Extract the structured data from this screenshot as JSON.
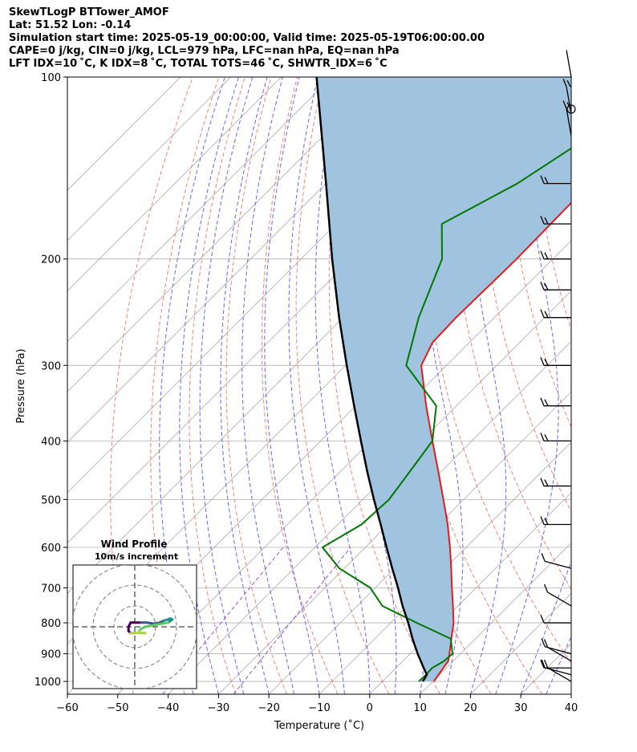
{
  "header": {
    "line1": "SkewTLogP BTTower_AMOF",
    "line2": "Lat: 51.52   Lon: -0.14",
    "line3": "Simulation start time: 2025-05-19_00:00:00, Valid time: 2025-05-19T06:00:00.00",
    "line4": "CAPE=0 j/kg, CIN=0 j/kg, LCL=979 hPa, LFC=nan hPa, EQ=nan hPa",
    "line5": "LFT IDX=10 ˚C, K IDX=8 ˚C, TOTAL TOTS=46 ˚C, SHWTR_IDX=6 ˚C"
  },
  "chart_data": {
    "type": "line",
    "subtype": "skew-T log-p diagram",
    "xlabel": "Temperature (˚C)",
    "ylabel": "Pressure (hPa)",
    "xlim": [
      -60,
      40
    ],
    "ylim": [
      1050,
      100
    ],
    "y_scale": "log",
    "skew": "isotherms slanted 45 degrees",
    "x_ticks": [
      "−60",
      "−50",
      "−40",
      "−30",
      "−20",
      "−10",
      "0",
      "10",
      "20",
      "30",
      "40"
    ],
    "x_tick_values": [
      -60,
      -50,
      -40,
      -30,
      -20,
      -10,
      0,
      10,
      20,
      30,
      40
    ],
    "y_ticks": [
      "100",
      "200",
      "300",
      "400",
      "500",
      "600",
      "700",
      "800",
      "900",
      "1000"
    ],
    "y_tick_values": [
      100,
      200,
      300,
      400,
      500,
      600,
      700,
      800,
      900,
      1000
    ],
    "grid": true,
    "colors": {
      "temperature": "#e41a1c",
      "dewpoint": "#007700",
      "parcel": "#000000",
      "cape_fill": "#a0c4e0",
      "dry_adiabat": "#f08080",
      "moist_adiabat": "#6666ee",
      "mixing_ratio": "#9955cc",
      "isotherm": "#aaaaaa"
    },
    "series": [
      {
        "key": "temperature",
        "pressure": [
          1000,
          975,
          950,
          925,
          900,
          850,
          800,
          750,
          700,
          650,
          600,
          550,
          500,
          450,
          400,
          350,
          300,
          275,
          250,
          200,
          150,
          125,
          110,
          100
        ],
        "values": [
          10.2,
          9.8,
          9.4,
          9.0,
          7.8,
          5.2,
          2.5,
          -1.0,
          -4.8,
          -8.8,
          -13.2,
          -18.2,
          -24.0,
          -30.5,
          -37.8,
          -46.0,
          -55.0,
          -57.3,
          -57.6,
          -57.2,
          -57.6,
          -58.0,
          -58.4,
          -58.8
        ]
      },
      {
        "key": "dewpoint",
        "pressure": [
          1000,
          975,
          950,
          925,
          900,
          850,
          800,
          750,
          700,
          650,
          600,
          550,
          500,
          450,
          400,
          350,
          300,
          250,
          200,
          175,
          150,
          125,
          100
        ],
        "values": [
          7.2,
          7.3,
          7.2,
          8.2,
          8.4,
          5.1,
          -4.8,
          -15.0,
          -21.0,
          -31.0,
          -38.5,
          -35.3,
          -34.8,
          -36.2,
          -37.8,
          -44.0,
          -58.0,
          -65.0,
          -72.0,
          -79.0,
          -72.0,
          -67.0,
          -63.0
        ]
      },
      {
        "key": "parcel",
        "pressure": [
          1000,
          975,
          950,
          900,
          850,
          800,
          750,
          700,
          650,
          600,
          550,
          500,
          450,
          400,
          350,
          300,
          250,
          200,
          150,
          100
        ],
        "values": [
          8.0,
          7.5,
          5.5,
          1.5,
          -2.5,
          -6.5,
          -11.0,
          -15.5,
          -20.5,
          -25.8,
          -31.5,
          -37.8,
          -44.6,
          -52.0,
          -60.3,
          -69.8,
          -80.8,
          -93.8,
          -110.0,
          -133.0
        ]
      }
    ],
    "wind_barbs": [
      {
        "pressure": 1000
      },
      {
        "pressure": 975
      },
      {
        "pressure": 950
      },
      {
        "pressure": 925
      },
      {
        "pressure": 900
      },
      {
        "pressure": 800
      },
      {
        "pressure": 750
      },
      {
        "pressure": 650
      },
      {
        "pressure": 550
      },
      {
        "pressure": 475
      },
      {
        "pressure": 400
      },
      {
        "pressure": 350
      },
      {
        "pressure": 300
      },
      {
        "pressure": 250
      },
      {
        "pressure": 225
      },
      {
        "pressure": 200
      },
      {
        "pressure": 175
      },
      {
        "pressure": 150
      },
      {
        "pressure": 125
      },
      {
        "pressure": 115
      },
      {
        "pressure": 100
      }
    ],
    "hodograph": {
      "title": "Wind Profile",
      "subtitle": "10m/s increment",
      "ring_count": 3,
      "points_uv": [
        [
          -2,
          -3
        ],
        [
          -3,
          -2
        ],
        [
          -3,
          0
        ],
        [
          -2,
          2
        ],
        [
          0,
          2
        ],
        [
          3,
          2
        ],
        [
          6,
          2
        ],
        [
          9,
          1.5
        ],
        [
          12,
          2
        ],
        [
          14,
          3
        ],
        [
          16,
          3.5
        ],
        [
          17,
          4
        ],
        [
          18,
          3.5
        ],
        [
          16,
          2
        ],
        [
          10,
          1
        ],
        [
          5,
          0
        ],
        [
          3,
          -1
        ],
        [
          2,
          -2
        ],
        [
          3,
          -3
        ],
        [
          5,
          -3
        ],
        [
          -2,
          -3
        ]
      ]
    }
  }
}
